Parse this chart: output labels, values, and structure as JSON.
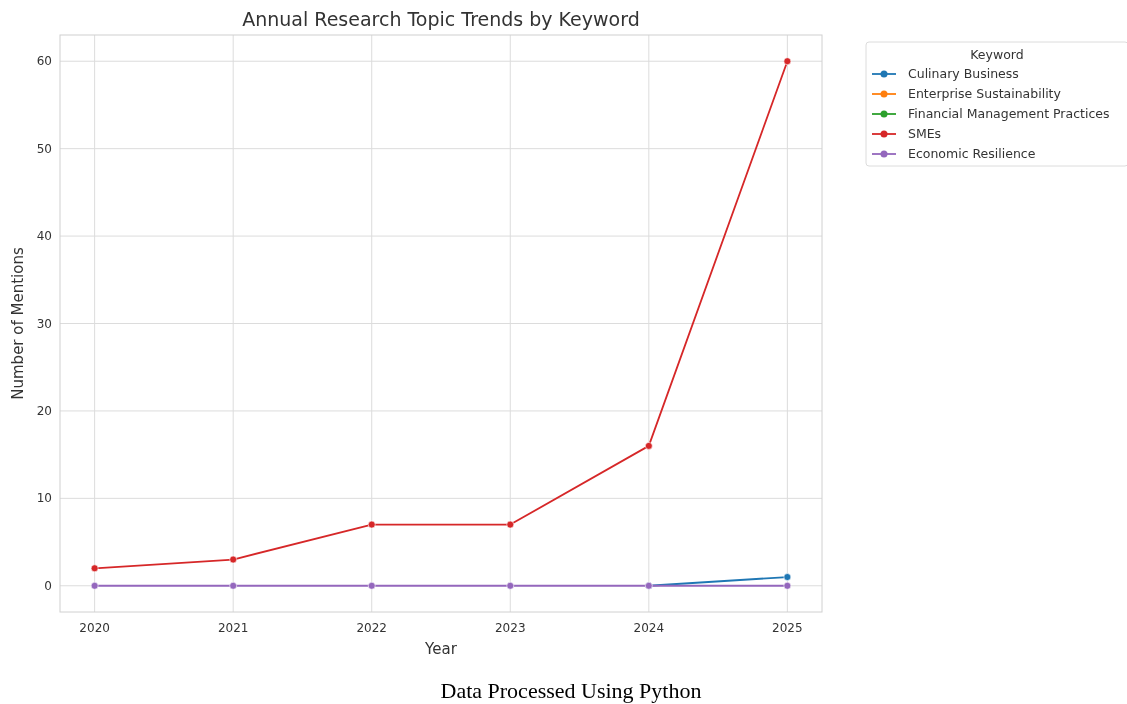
{
  "chart_data": {
    "type": "line",
    "title": "Annual Research Topic Trends by Keyword",
    "xlabel": "Year",
    "ylabel": "Number of Mentions",
    "legend_title": "Keyword",
    "x": [
      2020,
      2021,
      2022,
      2023,
      2024,
      2025
    ],
    "xlim": [
      2019.75,
      2025.25
    ],
    "xticks": [
      2020,
      2021,
      2022,
      2023,
      2024,
      2025
    ],
    "ylim": [
      -3,
      63
    ],
    "yticks": [
      0,
      10,
      20,
      30,
      40,
      50,
      60
    ],
    "grid": true,
    "legend": "top right",
    "marker": "circle",
    "line_style": "solid",
    "annotations": [
      "Data Processed Using Python"
    ],
    "series": [
      {
        "name": "Culinary Business",
        "color": "#1f77b4",
        "values": [
          null,
          null,
          null,
          null,
          0,
          1
        ]
      },
      {
        "name": "Enterprise Sustainability",
        "color": "#ff7f0e",
        "values": [
          null,
          null,
          null,
          null,
          null,
          null
        ]
      },
      {
        "name": "Financial Management Practices",
        "color": "#2ca02c",
        "values": [
          null,
          null,
          null,
          null,
          null,
          null
        ]
      },
      {
        "name": "SMEs",
        "color": "#d62728",
        "values": [
          2,
          3,
          7,
          7,
          16,
          60
        ]
      },
      {
        "name": "Economic Resilience",
        "color": "#9467bd",
        "values": [
          0,
          0,
          0,
          0,
          0,
          0
        ]
      }
    ]
  }
}
